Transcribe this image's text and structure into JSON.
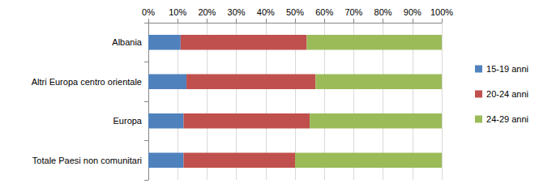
{
  "chart_data": {
    "type": "bar",
    "orientation": "horizontal",
    "stacked": true,
    "grid": true,
    "legend": "right",
    "categories": [
      "Albania",
      "Altri Europa centro orientale",
      "Europa",
      "Totale Paesi non comunitari"
    ],
    "series": [
      {
        "name": "15-19 anni",
        "color": "#4f81bd",
        "values": [
          11,
          13,
          12,
          12
        ]
      },
      {
        "name": "20-24 anni",
        "color": "#c0504d",
        "values": [
          43,
          44,
          43,
          38
        ]
      },
      {
        "name": "24-29 anni",
        "color": "#9bbb59",
        "values": [
          46,
          43,
          45,
          50
        ]
      }
    ],
    "xlim": [
      0,
      100
    ],
    "xticks": [
      {
        "value": 0,
        "label": "0%"
      },
      {
        "value": 10,
        "label": "10%"
      },
      {
        "value": 20,
        "label": "20%"
      },
      {
        "value": 30,
        "label": "30%"
      },
      {
        "value": 40,
        "label": "40%"
      },
      {
        "value": 50,
        "label": "50%"
      },
      {
        "value": 60,
        "label": "60%"
      },
      {
        "value": 70,
        "label": "70%"
      },
      {
        "value": 80,
        "label": "80%"
      },
      {
        "value": 90,
        "label": "90%"
      },
      {
        "value": 100,
        "label": "100%"
      }
    ]
  }
}
